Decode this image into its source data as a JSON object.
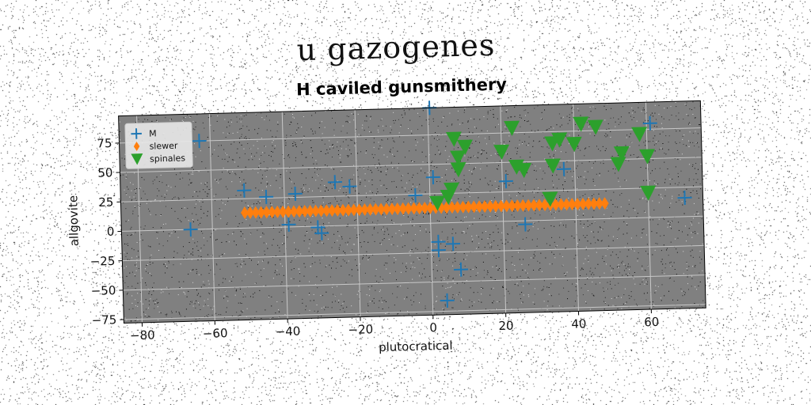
{
  "suptitle": "u gazogenes",
  "chart_data": {
    "type": "scatter",
    "title": "H caviled gunsmithery",
    "xlabel": "plutocratical",
    "ylabel": "allgovite",
    "xlim": [
      -85,
      75
    ],
    "ylim": [
      -78,
      98
    ],
    "xticks": [
      -80,
      -60,
      -40,
      -20,
      0,
      20,
      40,
      60
    ],
    "yticks": [
      -75,
      -50,
      -25,
      0,
      25,
      50,
      75
    ],
    "grid": true,
    "legend_position": "top-left",
    "background": "#808080",
    "series": [
      {
        "name": "M",
        "marker": "plus",
        "color": "#1f77b4",
        "points": [
          [
            0.5,
            98
          ],
          [
            -63,
            75
          ],
          [
            -51,
            32
          ],
          [
            -45,
            26
          ],
          [
            -37,
            28
          ],
          [
            -26,
            37
          ],
          [
            -22,
            33
          ],
          [
            -39,
            2
          ],
          [
            -31,
            -1
          ],
          [
            -30,
            -6
          ],
          [
            -66,
            0
          ],
          [
            -4,
            24
          ],
          [
            1,
            39
          ],
          [
            2,
            -16
          ],
          [
            2,
            -23
          ],
          [
            6,
            -18
          ],
          [
            8,
            -40
          ],
          [
            4,
            -66
          ],
          [
            21,
            34
          ],
          [
            26,
            -3
          ],
          [
            37,
            43
          ],
          [
            61,
            80
          ],
          [
            70,
            16
          ]
        ]
      },
      {
        "name": "slewer",
        "marker": "thin_diamond",
        "color": "#ff7f0e",
        "points": "line",
        "x_start": -51,
        "x_end": 49,
        "x_step": 1.5,
        "y_line": 13
      },
      {
        "name": "spinales",
        "marker": "triangle_down",
        "color": "#2ca02c",
        "points": [
          [
            7,
            71
          ],
          [
            10,
            64
          ],
          [
            8,
            55
          ],
          [
            8,
            45
          ],
          [
            6,
            28
          ],
          [
            5,
            22
          ],
          [
            2,
            17
          ],
          [
            20,
            59
          ],
          [
            23,
            79
          ],
          [
            24,
            46
          ],
          [
            26,
            43
          ],
          [
            33,
            18
          ],
          [
            34,
            65
          ],
          [
            36,
            68
          ],
          [
            34,
            46
          ],
          [
            40,
            64
          ],
          [
            42,
            81
          ],
          [
            46,
            78
          ],
          [
            52,
            46
          ],
          [
            53,
            55
          ],
          [
            58,
            71
          ],
          [
            60,
            52
          ],
          [
            60,
            21
          ]
        ]
      }
    ]
  }
}
